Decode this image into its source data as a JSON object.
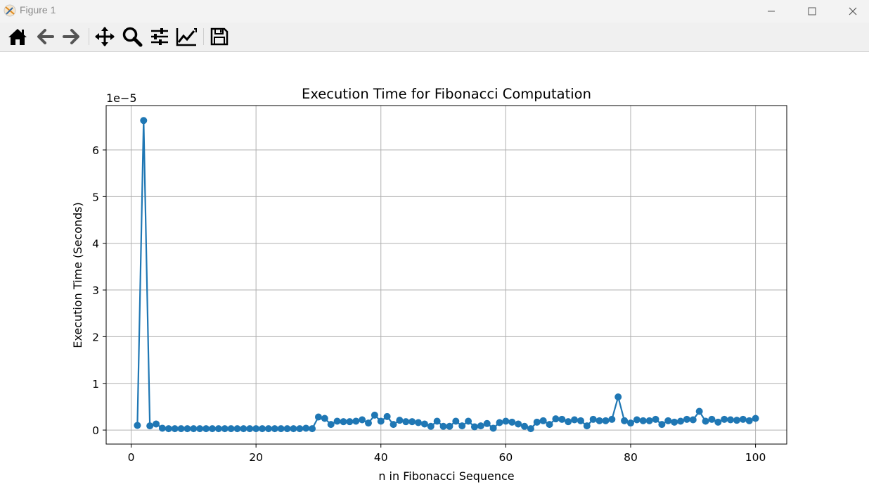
{
  "window": {
    "title": "Figure 1"
  },
  "toolbar": {
    "icons": [
      "home-icon",
      "back-arrow-icon",
      "forward-arrow-icon",
      "pan-icon",
      "zoom-icon",
      "subplots-icon",
      "axes-edit-icon",
      "save-icon"
    ]
  },
  "chart_data": {
    "type": "line",
    "title": "Execution Time for Fibonacci Computation",
    "xlabel": "n in Fibonacci Sequence",
    "ylabel": "Execution Time (Seconds)",
    "y_offset_label": "1e−5",
    "xlim": [
      -4,
      105
    ],
    "ylim": [
      -0.3,
      6.95
    ],
    "x_ticks": [
      0,
      20,
      40,
      60,
      80,
      100
    ],
    "y_ticks": [
      0,
      1,
      2,
      3,
      4,
      5,
      6
    ],
    "x_tick_labels": [
      "0",
      "20",
      "40",
      "60",
      "80",
      "100"
    ],
    "y_tick_labels": [
      "0",
      "1",
      "2",
      "3",
      "4",
      "5",
      "6"
    ],
    "grid": true,
    "marker": "circle",
    "color": "#1f77b4",
    "x": [
      1,
      2,
      3,
      4,
      5,
      6,
      7,
      8,
      9,
      10,
      11,
      12,
      13,
      14,
      15,
      16,
      17,
      18,
      19,
      20,
      21,
      22,
      23,
      24,
      25,
      26,
      27,
      28,
      29,
      30,
      31,
      32,
      33,
      34,
      35,
      36,
      37,
      38,
      39,
      40,
      41,
      42,
      43,
      44,
      45,
      46,
      47,
      48,
      49,
      50,
      51,
      52,
      53,
      54,
      55,
      56,
      57,
      58,
      59,
      60,
      61,
      62,
      63,
      64,
      65,
      66,
      67,
      68,
      69,
      70,
      71,
      72,
      73,
      74,
      75,
      76,
      77,
      78,
      79,
      80,
      81,
      82,
      83,
      84,
      85,
      86,
      87,
      88,
      89,
      90,
      91,
      92,
      93,
      94,
      95,
      96,
      97,
      98,
      99,
      100
    ],
    "y": [
      0.1,
      6.63,
      0.09,
      0.13,
      0.04,
      0.03,
      0.03,
      0.03,
      0.03,
      0.03,
      0.03,
      0.03,
      0.03,
      0.03,
      0.03,
      0.03,
      0.03,
      0.03,
      0.03,
      0.03,
      0.03,
      0.03,
      0.03,
      0.03,
      0.03,
      0.03,
      0.03,
      0.04,
      0.03,
      0.28,
      0.25,
      0.12,
      0.19,
      0.18,
      0.18,
      0.19,
      0.22,
      0.15,
      0.32,
      0.19,
      0.29,
      0.12,
      0.21,
      0.18,
      0.18,
      0.16,
      0.13,
      0.08,
      0.19,
      0.08,
      0.08,
      0.19,
      0.09,
      0.19,
      0.07,
      0.09,
      0.14,
      0.04,
      0.16,
      0.19,
      0.17,
      0.13,
      0.08,
      0.03,
      0.17,
      0.2,
      0.12,
      0.24,
      0.23,
      0.18,
      0.22,
      0.2,
      0.09,
      0.23,
      0.2,
      0.2,
      0.23,
      0.71,
      0.2,
      0.15,
      0.22,
      0.2,
      0.2,
      0.23,
      0.12,
      0.2,
      0.17,
      0.19,
      0.23,
      0.22,
      0.4,
      0.19,
      0.23,
      0.17,
      0.23,
      0.22,
      0.21,
      0.23,
      0.2,
      0.25
    ]
  }
}
